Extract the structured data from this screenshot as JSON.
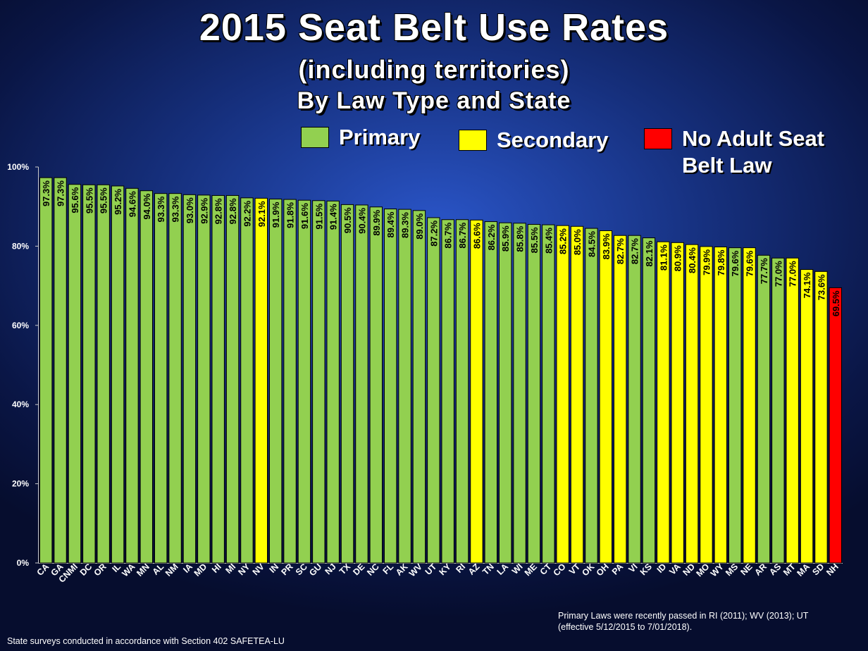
{
  "title": "2015 Seat Belt Use Rates",
  "subtitle1": "(including territories)",
  "subtitle2": "By Law Type and State",
  "legend": [
    {
      "label": "Primary",
      "color": "#92D050"
    },
    {
      "label": "Secondary",
      "color": "#FFFF00"
    },
    {
      "label": "No Adult Seat Belt Law",
      "color": "#FF0000"
    }
  ],
  "footnote_right": "Primary Laws were recently passed in RI (2011); WV (2013); UT (effective 5/12/2015 to 7/01/2018).",
  "footnote_left": "State surveys conducted in accordance with Section 402 SAFETEA-LU",
  "chart_data": {
    "type": "bar",
    "ylim": [
      0,
      100
    ],
    "yticks": [
      "0%",
      "20%",
      "40%",
      "60%",
      "80%",
      "100%"
    ],
    "categories": [
      "CA",
      "GA",
      "CNMI",
      "DC",
      "OR",
      "IL",
      "WA",
      "MN",
      "AL",
      "NM",
      "IA",
      "MD",
      "HI",
      "MI",
      "NY",
      "NV",
      "IN",
      "PR",
      "SC",
      "GU",
      "NJ",
      "TX",
      "DE",
      "NC",
      "FL",
      "AK",
      "WV",
      "UT",
      "KY",
      "RI",
      "AZ",
      "TN",
      "LA",
      "WI",
      "ME",
      "CT",
      "CO",
      "VT",
      "OK",
      "OH",
      "PA",
      "VI",
      "KS",
      "ID",
      "VA",
      "ND",
      "MO",
      "WY",
      "MS",
      "NE",
      "AR",
      "AS",
      "MT",
      "MA",
      "SD",
      "NH"
    ],
    "values": [
      97.3,
      97.3,
      95.6,
      95.5,
      95.5,
      95.2,
      94.6,
      94.0,
      93.3,
      93.3,
      93.0,
      92.9,
      92.8,
      92.8,
      92.2,
      92.1,
      91.9,
      91.8,
      91.6,
      91.5,
      91.4,
      90.5,
      90.4,
      89.9,
      89.4,
      89.3,
      89.0,
      87.2,
      86.7,
      86.7,
      86.6,
      86.2,
      85.9,
      85.8,
      85.5,
      85.4,
      85.2,
      85.0,
      84.5,
      83.9,
      82.7,
      82.7,
      82.1,
      81.1,
      80.9,
      80.4,
      79.9,
      79.8,
      79.6,
      79.6,
      77.7,
      77.0,
      77.0,
      74.1,
      73.6,
      69.5
    ],
    "law_types": [
      "P",
      "P",
      "P",
      "P",
      "P",
      "P",
      "P",
      "P",
      "P",
      "P",
      "P",
      "P",
      "P",
      "P",
      "P",
      "S",
      "P",
      "P",
      "P",
      "P",
      "P",
      "P",
      "P",
      "P",
      "P",
      "P",
      "P",
      "P",
      "P",
      "P",
      "S",
      "P",
      "P",
      "P",
      "P",
      "P",
      "S",
      "S",
      "P",
      "S",
      "S",
      "P",
      "P",
      "S",
      "S",
      "S",
      "S",
      "S",
      "P",
      "S",
      "P",
      "P",
      "S",
      "S",
      "S",
      "N"
    ],
    "value_labels": [
      "97.3%",
      "97.3%",
      "95.6%",
      "95.5%",
      "95.5%",
      "95.2%",
      "94.6%",
      "94.0%",
      "93.3%",
      "93.3%",
      "93.0%",
      "92.9%",
      "92.8%",
      "92.8%",
      "92.2%",
      "92.1%",
      "91.9%",
      "91.8%",
      "91.6%",
      "91.5%",
      "91.4%",
      "90.5%",
      "90.4%",
      "89.9%",
      "89.4%",
      "89.3%",
      "89.0%",
      "87.2%",
      "86.7%",
      "86.7%",
      "86.6%",
      "86.2%",
      "85.9%",
      "85.8%",
      "85.5%",
      "85.4%",
      "85.2%",
      "85.0%",
      "84.5%",
      "83.9%",
      "82.7%",
      "82.7%",
      "82.1%",
      "81.1%",
      "80.9%",
      "80.4%",
      "79.9%",
      "79.8%",
      "79.6%",
      "79.6%",
      "77.7%",
      "77.0%",
      "77.0%",
      "74.1%",
      "73.6%",
      "69.5%"
    ],
    "colors": {
      "P": "#92D050",
      "S": "#FFFF00",
      "N": "#FF0000"
    }
  }
}
